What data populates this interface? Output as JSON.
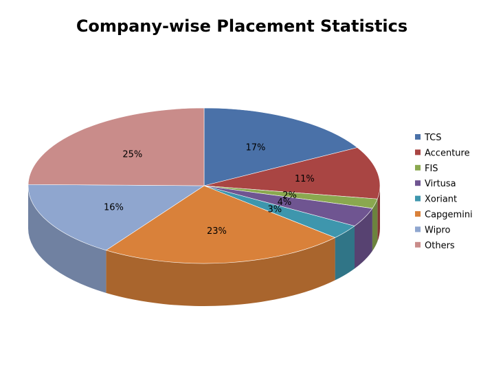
{
  "chart_data": {
    "type": "pie",
    "title": "Company-wise Placement Statistics",
    "categories": [
      "TCS",
      "Accenture",
      "FIS",
      "Virtusa",
      "Xoriant",
      "Capgemini",
      "Wipro",
      "Others"
    ],
    "values": [
      17,
      11,
      2,
      4,
      3,
      23,
      16,
      25
    ],
    "labels": [
      "17%",
      "11%",
      "2%",
      "4%",
      "3%",
      "23%",
      "16%",
      "25%"
    ],
    "colors": [
      "#4A71A8",
      "#A94543",
      "#8AA84F",
      "#6F5591",
      "#3E96AD",
      "#D9813A",
      "#8FA6CF",
      "#C98C8A"
    ],
    "legend_position": "right",
    "style": "3d"
  }
}
